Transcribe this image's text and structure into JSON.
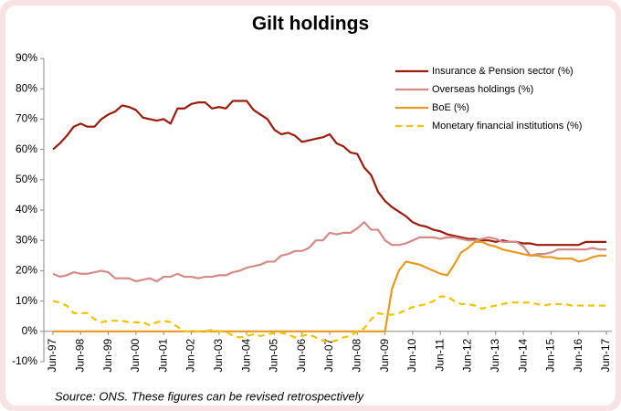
{
  "chart_data": {
    "type": "line",
    "title": "Gilt holdings",
    "source": "Source: ONS. These figures can be revised retrospectively",
    "categories": [
      "Jun-97",
      null,
      null,
      null,
      "Jun-98",
      null,
      null,
      null,
      "Jun-99",
      null,
      null,
      null,
      "Jun-00",
      null,
      null,
      null,
      "Jun-01",
      null,
      null,
      null,
      "Jun-02",
      null,
      null,
      null,
      "Jun-03",
      null,
      null,
      null,
      "Jun-04",
      null,
      null,
      null,
      "Jun-05",
      null,
      null,
      null,
      "Jun-06",
      null,
      null,
      null,
      "Jun-07",
      null,
      null,
      null,
      "Jun-08",
      null,
      null,
      null,
      "Jun-09",
      null,
      null,
      null,
      "Jun-10",
      null,
      null,
      null,
      "Jun-11",
      null,
      null,
      null,
      "Jun-12",
      null,
      null,
      null,
      "Jun-13",
      null,
      null,
      null,
      "Jun-14",
      null,
      null,
      null,
      "Jun-15",
      null,
      null,
      null,
      "Jun-16",
      null,
      null,
      null,
      "Jun-17"
    ],
    "series": [
      {
        "name": "Insurance & Pension sector (%)",
        "color": "#9b1c0c",
        "dashed": false,
        "values": [
          60,
          62,
          64.5,
          67.5,
          68.5,
          67.5,
          67.5,
          70,
          71.5,
          72.5,
          74.5,
          74,
          73,
          70.5,
          70,
          69.5,
          70,
          68.5,
          73.5,
          73.5,
          75,
          75.5,
          75.5,
          73.5,
          74,
          73.5,
          76,
          76,
          76,
          73,
          71.5,
          70,
          66.5,
          65,
          65.5,
          64.5,
          62.5,
          63,
          63.5,
          64,
          65,
          62,
          61,
          59,
          58.5,
          54,
          51.5,
          46,
          43,
          41,
          39.5,
          38,
          36,
          35,
          34.5,
          33.5,
          33,
          32,
          31.5,
          31,
          30.5,
          30.5,
          30,
          30,
          29.5,
          30,
          29.5,
          29.5,
          29,
          29,
          28.5,
          28.5,
          28.5,
          28.5,
          28.5,
          28.5,
          28.5,
          29.5,
          29.5,
          29.5,
          29.5
        ]
      },
      {
        "name": "Overseas holdings (%)",
        "color": "#d48a87",
        "dashed": false,
        "values": [
          19,
          18,
          18.5,
          19.5,
          19,
          19,
          19.5,
          20,
          19.5,
          17.5,
          17.5,
          17.5,
          16.5,
          17,
          17.5,
          16.5,
          18,
          18,
          19,
          18,
          18,
          17.5,
          18,
          18,
          18.5,
          18.5,
          19.5,
          20,
          21,
          21.5,
          22,
          23,
          23,
          25,
          25.5,
          26.5,
          26.5,
          27.5,
          30,
          30,
          32.5,
          32,
          32.5,
          32.5,
          34,
          36,
          33.5,
          33.5,
          30,
          28.5,
          28.5,
          29,
          30,
          31,
          31,
          31,
          30.5,
          31,
          31,
          30.5,
          30,
          30,
          30.5,
          31,
          30.5,
          29.5,
          29.5,
          29.5,
          28,
          25,
          25.5,
          25.5,
          26,
          27,
          27,
          27,
          27,
          27,
          27.5,
          27,
          27
        ]
      },
      {
        "name": "BoE (%)",
        "color": "#e89a1e",
        "dashed": false,
        "values": [
          0,
          0,
          0,
          0,
          0,
          0,
          0,
          0,
          0,
          0,
          0,
          0,
          0,
          0,
          0,
          0,
          0,
          0,
          0,
          0,
          0,
          0,
          0,
          0,
          0,
          0,
          0,
          0,
          0,
          0,
          0,
          0,
          0,
          0,
          0,
          0,
          0,
          0,
          0,
          0,
          0,
          0,
          0,
          0,
          0,
          0,
          0,
          0,
          0,
          14,
          20,
          23,
          22.5,
          22,
          21,
          20,
          19,
          18.5,
          22,
          26,
          27.5,
          29.5,
          29.5,
          28.5,
          28,
          27,
          26.5,
          26,
          25.5,
          25,
          25,
          24.5,
          24.5,
          24,
          24,
          24,
          23,
          23.5,
          24.5,
          25,
          25
        ]
      },
      {
        "name": "Monetary financial institutions (%)",
        "color": "#f2c200",
        "dashed": true,
        "values": [
          10,
          9.5,
          8.5,
          6,
          6,
          6,
          4,
          3,
          3.5,
          3.5,
          3.5,
          3,
          3,
          3,
          2,
          3,
          3.5,
          3,
          1.5,
          0,
          0,
          0,
          0,
          0.5,
          0,
          0,
          -1.5,
          -2,
          -1.5,
          -1,
          -1.5,
          -1,
          -0.5,
          -0.5,
          -1,
          -2,
          -1.5,
          -1,
          -2,
          -3,
          -3.5,
          -3,
          -2,
          -1.5,
          0,
          1,
          4,
          6,
          5.5,
          5.5,
          6,
          7,
          8,
          8.5,
          9,
          10,
          11.5,
          11.5,
          10,
          9,
          9,
          8.5,
          7.5,
          8,
          8.5,
          9,
          9.5,
          9.5,
          9.5,
          9.5,
          9,
          8.5,
          9,
          9,
          9,
          8.5,
          8.5,
          8.5,
          8.5,
          8.5,
          8.5
        ]
      }
    ],
    "ylim": [
      -10,
      90
    ],
    "yticks": [
      {
        "value": -10,
        "label": "-10%"
      },
      {
        "value": 0,
        "label": "0%"
      },
      {
        "value": 10,
        "label": "10%"
      },
      {
        "value": 20,
        "label": "20%"
      },
      {
        "value": 30,
        "label": "30%"
      },
      {
        "value": 40,
        "label": "40%"
      },
      {
        "value": 50,
        "label": "50%"
      },
      {
        "value": 60,
        "label": "60%"
      },
      {
        "value": 70,
        "label": "70%"
      },
      {
        "value": 80,
        "label": "80%"
      },
      {
        "value": 90,
        "label": "90%"
      }
    ],
    "legend": "upper right",
    "grid": false
  }
}
